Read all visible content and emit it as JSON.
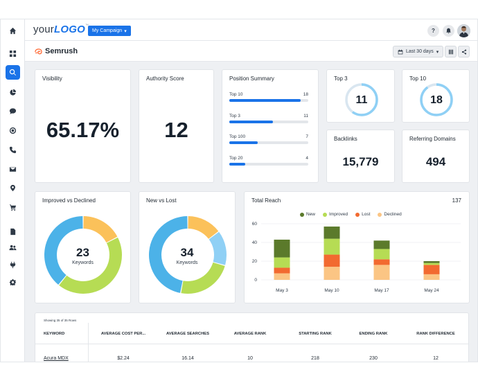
{
  "header": {
    "logo_prefix": "your",
    "logo_bold": "LOGO",
    "logo_tm": "™",
    "campaign_label": "My Campaign",
    "help_label": "?"
  },
  "subheader": {
    "brand": "Semrush",
    "date_range": "Last 30 days"
  },
  "sidebar": {
    "icons": [
      "home-icon",
      "dashboard-icon",
      "search-icon",
      "pie-chart-icon",
      "chat-icon",
      "target-icon",
      "phone-icon",
      "mail-icon",
      "location-pin-icon",
      "cart-icon",
      "document-icon",
      "users-icon",
      "plug-icon",
      "gear-icon"
    ],
    "active_index": 2
  },
  "visibility": {
    "title": "Visibility",
    "value": "65.17%"
  },
  "authority": {
    "title": "Authority Score",
    "value": "12"
  },
  "position_summary": {
    "title": "Position Summary",
    "rows": [
      {
        "label": "Top 10",
        "value": "18",
        "fill": 0.9
      },
      {
        "label": "Top 3",
        "value": "11",
        "fill": 0.55
      },
      {
        "label": "Top 100",
        "value": "7",
        "fill": 0.36
      },
      {
        "label": "Top 20",
        "value": "4",
        "fill": 0.2
      }
    ]
  },
  "top3": {
    "title": "Top 3",
    "value": "11",
    "ring_fill": 0.6
  },
  "top10": {
    "title": "Top 10",
    "value": "18",
    "ring_fill": 0.9
  },
  "backlinks": {
    "title": "Backlinks",
    "value": "15,779"
  },
  "referring_domains": {
    "title": "Referring Domains",
    "value": "494"
  },
  "improved_declined": {
    "title": "Improved vs Declined",
    "center_value": "23",
    "center_label": "Keywords",
    "segments": [
      {
        "value": 4,
        "color": "#fbc15a"
      },
      {
        "value": 10,
        "color": "#b6dc54"
      },
      {
        "value": 9,
        "color": "#4cb2e8"
      }
    ]
  },
  "new_lost": {
    "title": "New vs Lost",
    "center_value": "34",
    "center_label": "Keywords",
    "segments": [
      {
        "value": 5,
        "color": "#fbc15a"
      },
      {
        "value": 5,
        "color": "#8fd0f5"
      },
      {
        "value": 8,
        "color": "#b6dc54"
      },
      {
        "value": 16,
        "color": "#4cb2e8"
      }
    ]
  },
  "total_reach": {
    "title": "Total Reach",
    "total": "137",
    "chart_data": {
      "type": "bar",
      "stacked": true,
      "categories": [
        "May 3",
        "May 10",
        "May 17",
        "May 24"
      ],
      "series": [
        {
          "name": "Declined",
          "color": "#fbc584",
          "values": [
            7,
            14,
            16,
            6
          ]
        },
        {
          "name": "Lost",
          "color": "#f26a30",
          "values": [
            6,
            13,
            6,
            10
          ]
        },
        {
          "name": "Improved",
          "color": "#b6dc54",
          "values": [
            11,
            17,
            11,
            2
          ]
        },
        {
          "name": "New",
          "color": "#5b7a2b",
          "values": [
            19,
            13,
            9,
            2
          ]
        }
      ],
      "legend_order": [
        "New",
        "Improved",
        "Lost",
        "Declined"
      ],
      "legend_colors": [
        "#5b7a2b",
        "#b6dc54",
        "#f26a30",
        "#fbc584"
      ],
      "yticks": [
        "0",
        "20",
        "40",
        "60"
      ],
      "ylim": [
        0,
        60
      ],
      "legend_position": "top"
    }
  },
  "table": {
    "caption": "Showing 35 of 35 Rows",
    "columns": [
      "KEYWORD",
      "AVERAGE COST PER...",
      "AVERAGE SEARCHES",
      "AVERAGE RANK",
      "STARTING RANK",
      "ENDING RANK",
      "RANK DIFFERENCE"
    ],
    "rows": [
      [
        "Acura MDX",
        "$2.24",
        "16.14",
        "10",
        "218",
        "230",
        "12"
      ]
    ]
  }
}
